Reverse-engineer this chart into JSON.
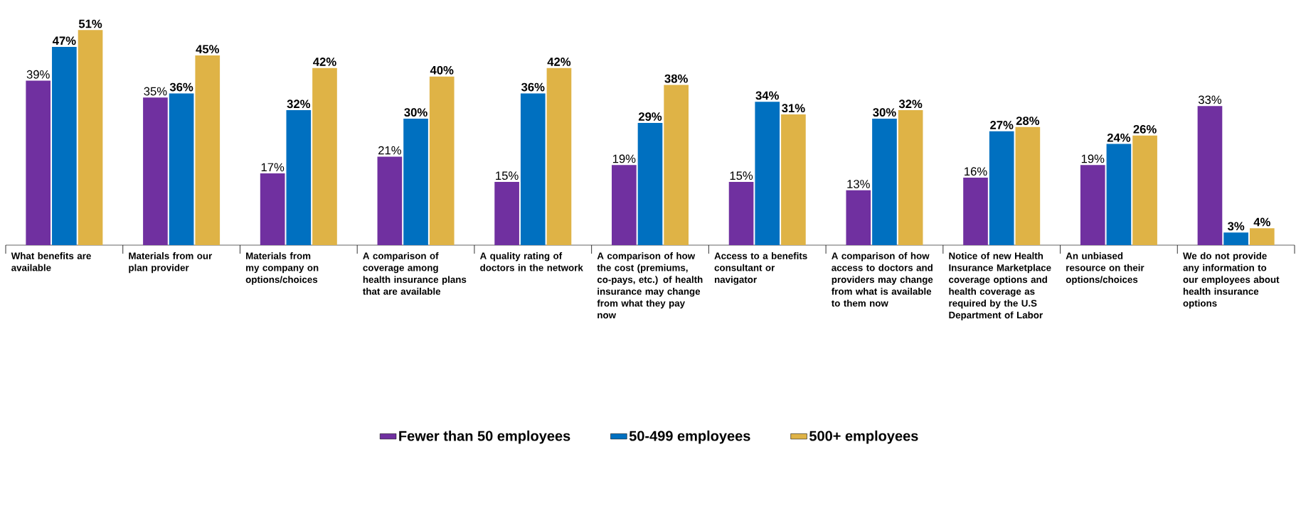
{
  "chart_data": {
    "type": "bar",
    "categories": [
      "What benefits are available",
      "Materials from our plan provider",
      "Materials from my company on options/choices",
      "A comparison of coverage among health insurance plans that are available",
      "A quality rating of doctors in the network",
      "A comparison of how the cost (premiums, co-pays, etc.) of health insurance may change from what they pay now",
      "Access to a benefits consultant or navigator",
      "A comparison of how access to doctors and providers may change from what is available to them now",
      "Notice of new Health Insurance Marketplace coverage options and health coverage as required by the U.S Department of Labor",
      "An unbiased resource on their options/choices",
      "We do not provide any information to our employees about health insurance options"
    ],
    "series": [
      {
        "name": "Fewer than 50 employees",
        "color": "#7030a0",
        "values": [
          39,
          35,
          17,
          21,
          15,
          19,
          15,
          13,
          16,
          19,
          33
        ],
        "value_labels": [
          "39%",
          "35%",
          "17%",
          "21%",
          "15%",
          "19%",
          "15%",
          "13%",
          "16%",
          "19%",
          "33%"
        ]
      },
      {
        "name": "50-499 employees",
        "color": "#0070c0",
        "values": [
          47,
          36,
          32,
          30,
          36,
          29,
          34,
          30,
          27,
          24,
          3
        ],
        "value_labels": [
          "47%",
          "36%",
          "32%",
          "30%",
          "36%",
          "29%",
          "34%",
          "30%",
          "27%",
          "24%",
          "3%"
        ]
      },
      {
        "name": "500+ employees",
        "color": "#dfb346",
        "values": [
          51,
          45,
          42,
          40,
          42,
          38,
          31,
          32,
          28,
          26,
          4
        ],
        "value_labels": [
          "51%",
          "45%",
          "42%",
          "40%",
          "42%",
          "38%",
          "31%",
          "32%",
          "28%",
          "26%",
          "4%"
        ]
      }
    ],
    "legend": "bottom"
  }
}
